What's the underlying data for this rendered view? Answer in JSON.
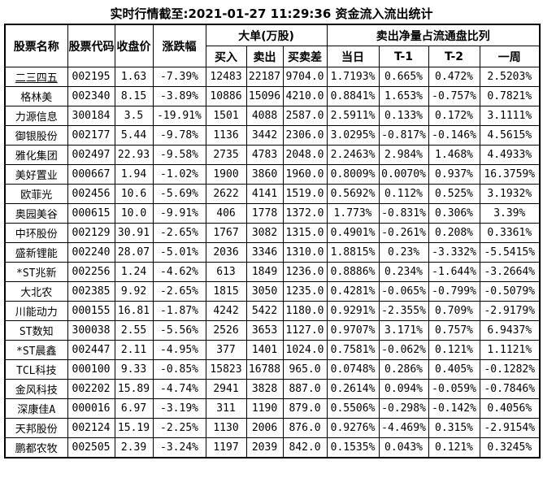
{
  "title": "实时行情截至:2021-01-27 11:29:36 资金流入流出统计",
  "colors": {
    "background": "#ffffff",
    "border": "#000000",
    "text": "#000000",
    "stock_link": "#1e5e96"
  },
  "table": {
    "selected_row": 0,
    "header": {
      "stock_name": "股票名称",
      "stock_code": "股票代码",
      "close_price": "收盘价",
      "change_pct": "涨跌幅",
      "big_order_group": "大单(万股)",
      "big_order_cols": [
        "买入",
        "卖出",
        "买卖差"
      ],
      "net_sell_group": "卖出净量占流通盘比列",
      "net_sell_cols": [
        "当日",
        "T-1",
        "T-2",
        "一周"
      ]
    },
    "rows": [
      [
        "二三四五",
        "002195",
        "1.63",
        "-7.39%",
        "12483",
        "22187",
        "9704.0",
        "1.7193%",
        "0.665%",
        "0.472%",
        "2.5203%"
      ],
      [
        "格林美",
        "002340",
        "8.15",
        "-3.89%",
        "10886",
        "15096",
        "4210.0",
        "0.8841%",
        "1.653%",
        "-0.757%",
        "0.7821%"
      ],
      [
        "力源信息",
        "300184",
        "3.5",
        "-19.91%",
        "1501",
        "4088",
        "2587.0",
        "2.5911%",
        "0.133%",
        "0.172%",
        "3.1111%"
      ],
      [
        "御银股份",
        "002177",
        "5.44",
        "-9.78%",
        "1136",
        "3442",
        "2306.0",
        "3.0295%",
        "-0.817%",
        "-0.146%",
        "4.5615%"
      ],
      [
        "雅化集团",
        "002497",
        "22.93",
        "-9.58%",
        "2735",
        "4783",
        "2048.0",
        "2.2463%",
        "2.984%",
        "1.468%",
        "4.4933%"
      ],
      [
        "美好置业",
        "000667",
        "1.94",
        "-1.02%",
        "1900",
        "3860",
        "1960.0",
        "0.8009%",
        "0.0070%",
        "0.937%",
        "16.3759%"
      ],
      [
        "欧菲光",
        "002456",
        "10.6",
        "-5.69%",
        "2622",
        "4141",
        "1519.0",
        "0.5692%",
        "0.112%",
        "0.525%",
        "3.1932%"
      ],
      [
        "奥园美谷",
        "000615",
        "10.0",
        "-9.91%",
        "406",
        "1778",
        "1372.0",
        "1.773%",
        "-0.831%",
        "0.306%",
        "3.39%"
      ],
      [
        "中环股份",
        "002129",
        "30.91",
        "-2.65%",
        "1767",
        "3082",
        "1315.0",
        "0.4901%",
        "-0.261%",
        "0.208%",
        "0.3361%"
      ],
      [
        "盛新锂能",
        "002240",
        "28.07",
        "-5.01%",
        "2036",
        "3346",
        "1310.0",
        "1.8815%",
        "0.23%",
        "-3.332%",
        "-5.5415%"
      ],
      [
        "*ST兆新",
        "002256",
        "1.24",
        "-4.62%",
        "613",
        "1849",
        "1236.0",
        "0.8886%",
        "0.234%",
        "-1.644%",
        "-3.2664%"
      ],
      [
        "大北农",
        "002385",
        "9.92",
        "-2.65%",
        "1815",
        "3050",
        "1235.0",
        "0.4281%",
        "-0.065%",
        "-0.799%",
        "-0.5079%"
      ],
      [
        "川能动力",
        "000155",
        "16.81",
        "-1.87%",
        "4242",
        "5422",
        "1180.0",
        "0.9291%",
        "-2.355%",
        "0.709%",
        "-2.9179%"
      ],
      [
        "ST数知",
        "300038",
        "2.55",
        "-5.56%",
        "2526",
        "3653",
        "1127.0",
        "0.9707%",
        "3.171%",
        "0.757%",
        "6.9437%"
      ],
      [
        "*ST晨鑫",
        "002447",
        "2.11",
        "-4.95%",
        "377",
        "1401",
        "1024.0",
        "0.7581%",
        "-0.062%",
        "0.121%",
        "1.1121%"
      ],
      [
        "TCL科技",
        "000100",
        "9.33",
        "-0.85%",
        "15823",
        "16788",
        "965.0",
        "0.0748%",
        "0.286%",
        "0.405%",
        "-0.1282%"
      ],
      [
        "金风科技",
        "002202",
        "15.89",
        "-4.74%",
        "2941",
        "3828",
        "887.0",
        "0.2614%",
        "0.094%",
        "-0.059%",
        "-0.7846%"
      ],
      [
        "深康佳A",
        "000016",
        "6.97",
        "-3.19%",
        "311",
        "1190",
        "879.0",
        "0.5506%",
        "-0.298%",
        "-0.142%",
        "0.4056%"
      ],
      [
        "天邦股份",
        "002124",
        "15.19",
        "-2.25%",
        "1130",
        "2006",
        "876.0",
        "0.9276%",
        "-4.469%",
        "0.315%",
        "-2.9154%"
      ],
      [
        "鹏都农牧",
        "002505",
        "2.39",
        "-3.24%",
        "1197",
        "2039",
        "842.0",
        "0.1535%",
        "0.043%",
        "0.121%",
        "0.3245%"
      ]
    ]
  }
}
